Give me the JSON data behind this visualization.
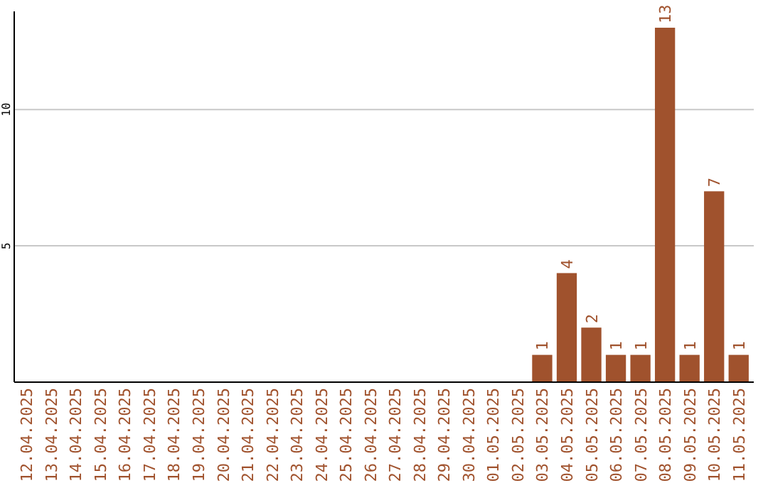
{
  "chart_data": {
    "type": "bar",
    "categories": [
      "12.04.2025",
      "13.04.2025",
      "14.04.2025",
      "15.04.2025",
      "16.04.2025",
      "17.04.2025",
      "18.04.2025",
      "19.04.2025",
      "20.04.2025",
      "21.04.2025",
      "22.04.2025",
      "23.04.2025",
      "24.04.2025",
      "25.04.2025",
      "26.04.2025",
      "27.04.2025",
      "28.04.2025",
      "29.04.2025",
      "30.04.2025",
      "01.05.2025",
      "02.05.2025",
      "03.05.2025",
      "04.05.2025",
      "05.05.2025",
      "06.05.2025",
      "07.05.2025",
      "08.05.2025",
      "09.05.2025",
      "10.05.2025",
      "11.05.2025"
    ],
    "values": [
      0,
      0,
      0,
      0,
      0,
      0,
      0,
      0,
      0,
      0,
      0,
      0,
      0,
      0,
      0,
      0,
      0,
      0,
      0,
      0,
      0,
      1,
      4,
      2,
      1,
      1,
      13,
      1,
      7,
      1
    ],
    "value_labels": [
      null,
      null,
      null,
      null,
      null,
      null,
      null,
      null,
      null,
      null,
      null,
      null,
      null,
      null,
      null,
      null,
      null,
      null,
      null,
      null,
      null,
      "1",
      "4",
      "2",
      "1",
      "1",
      "13",
      "1",
      "7",
      "1"
    ],
    "color": "#a0522d",
    "ylim": [
      0,
      13.6
    ],
    "yticks": [
      5,
      10
    ],
    "grid": "y"
  }
}
